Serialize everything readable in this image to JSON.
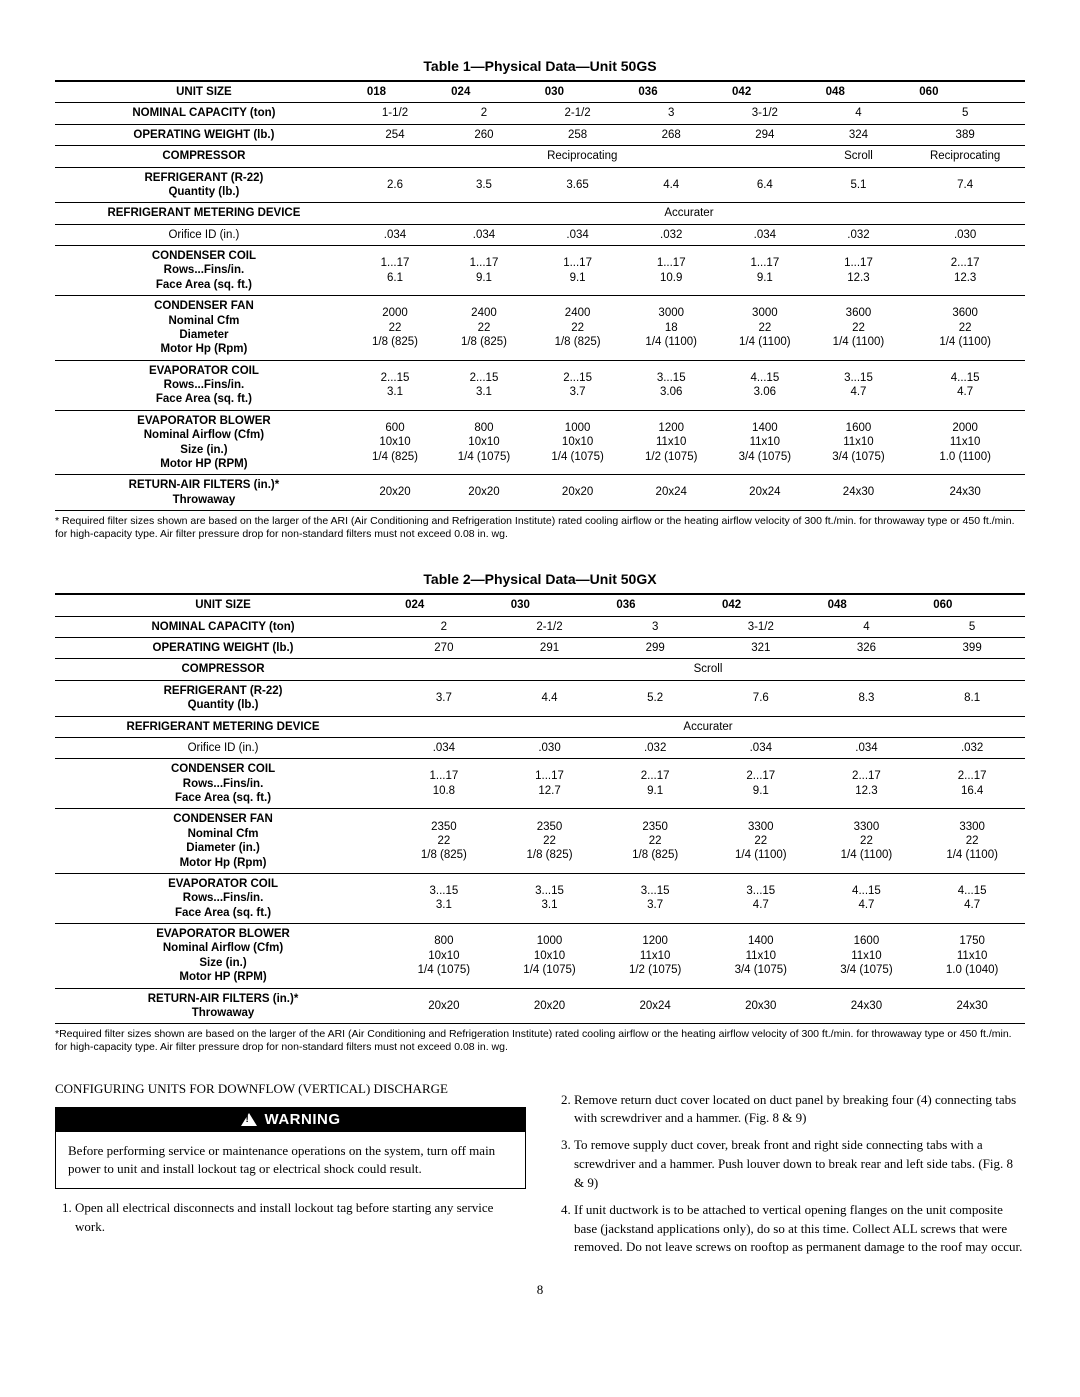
{
  "table1": {
    "title": "Table 1—Physical Data—Unit 50GS",
    "headers": [
      "UNIT SIZE",
      "018",
      "024",
      "030",
      "036",
      "042",
      "048",
      "060"
    ],
    "rows": [
      {
        "label": "NOMINAL CAPACITY (ton)",
        "vals": [
          "1-1/2",
          "2",
          "2-1/2",
          "3",
          "3-1/2",
          "4",
          "5"
        ]
      },
      {
        "label": "OPERATING WEIGHT (lb.)",
        "vals": [
          "254",
          "260",
          "258",
          "268",
          "294",
          "324",
          "389"
        ]
      },
      {
        "label": "COMPRESSOR",
        "spans": [
          {
            "text": "Reciprocating",
            "cols": 5
          },
          {
            "text": "Scroll",
            "cols": 1
          },
          {
            "text": "Reciprocating",
            "cols": 1
          }
        ]
      },
      {
        "label": "REFRIGERANT (R-22)\nQuantity (lb.)",
        "vals": [
          "2.6",
          "3.5",
          "3.65",
          "4.4",
          "6.4",
          "5.1",
          "7.4"
        ]
      },
      {
        "label": "REFRIGERANT METERING DEVICE",
        "spans": [
          {
            "text": "Accurater",
            "cols": 7
          }
        ]
      },
      {
        "label": "Orifice ID (in.)",
        "bold": false,
        "vals": [
          ".034",
          ".034",
          ".034",
          ".032",
          ".034",
          ".032",
          ".030"
        ]
      },
      {
        "label": "CONDENSER COIL\nRows...Fins/in.\nFace Area (sq. ft.)",
        "vals": [
          "1...17\n6.1",
          "1...17\n9.1",
          "1...17\n9.1",
          "1...17\n10.9",
          "1...17\n9.1",
          "1...17\n12.3",
          "2...17\n12.3"
        ]
      },
      {
        "label": "CONDENSER FAN\nNominal Cfm\nDiameter\nMotor Hp (Rpm)",
        "vals": [
          "2000\n22\n1/8 (825)",
          "2400\n22\n1/8 (825)",
          "2400\n22\n1/8 (825)",
          "3000\n18\n1/4 (1100)",
          "3000\n22\n1/4 (1100)",
          "3600\n22\n1/4 (1100)",
          "3600\n22\n1/4 (1100)"
        ]
      },
      {
        "label": "EVAPORATOR COIL\nRows...Fins/in.\nFace Area (sq. ft.)",
        "vals": [
          "2...15\n3.1",
          "2...15\n3.1",
          "2...15\n3.7",
          "3...15\n3.06",
          "4...15\n3.06",
          "3...15\n4.7",
          "4...15\n4.7"
        ]
      },
      {
        "label": "EVAPORATOR BLOWER\nNominal Airflow (Cfm)\nSize (in.)\nMotor HP (RPM)",
        "vals": [
          "600\n10x10\n1/4 (825)",
          "800\n10x10\n1/4 (1075)",
          "1000\n10x10\n1/4 (1075)",
          "1200\n11x10\n1/2 (1075)",
          "1400\n11x10\n3/4 (1075)",
          "1600\n11x10\n3/4 (1075)",
          "2000\n11x10\n1.0 (1100)"
        ]
      },
      {
        "label": "RETURN-AIR FILTERS (in.)*\nThrowaway",
        "vals": [
          "20x20",
          "20x20",
          "20x20",
          "20x24",
          "20x24",
          "24x30",
          "24x30"
        ]
      }
    ],
    "footnote": "* Required filter sizes shown are based on the larger of the ARI (Air Conditioning and Refrigeration Institute) rated cooling airflow or the heating airflow velocity of 300 ft./min. for throwaway type or 450 ft./min. for high-capacity type. Air filter pressure drop for non-standard filters must not exceed 0.08 in. wg."
  },
  "table2": {
    "title": "Table 2—Physical Data—Unit 50GX",
    "headers": [
      "UNIT SIZE",
      "024",
      "030",
      "036",
      "042",
      "048",
      "060"
    ],
    "rows": [
      {
        "label": "NOMINAL CAPACITY (ton)",
        "vals": [
          "2",
          "2-1/2",
          "3",
          "3-1/2",
          "4",
          "5"
        ]
      },
      {
        "label": "OPERATING WEIGHT (lb.)",
        "vals": [
          "270",
          "291",
          "299",
          "321",
          "326",
          "399"
        ]
      },
      {
        "label": "COMPRESSOR",
        "spans": [
          {
            "text": "Scroll",
            "cols": 6
          }
        ]
      },
      {
        "label": "REFRIGERANT (R-22)\nQuantity (lb.)",
        "vals": [
          "3.7",
          "4.4",
          "5.2",
          "7.6",
          "8.3",
          "8.1"
        ]
      },
      {
        "label": "REFRIGERANT METERING DEVICE",
        "spans": [
          {
            "text": "Accurater",
            "cols": 6
          }
        ]
      },
      {
        "label": "Orifice ID (in.)",
        "bold": false,
        "vals": [
          ".034",
          ".030",
          ".032",
          ".034",
          ".034",
          ".032"
        ]
      },
      {
        "label": "CONDENSER COIL\nRows...Fins/in.\nFace Area (sq. ft.)",
        "vals": [
          "1...17\n10.8",
          "1...17\n12.7",
          "2...17\n9.1",
          "2...17\n9.1",
          "2...17\n12.3",
          "2...17\n16.4"
        ]
      },
      {
        "label": "CONDENSER FAN\nNominal Cfm\nDiameter (in.)\nMotor Hp (Rpm)",
        "vals": [
          "2350\n22\n1/8 (825)",
          "2350\n22\n1/8 (825)",
          "2350\n22\n1/8 (825)",
          "3300\n22\n1/4 (1100)",
          "3300\n22\n1/4 (1100)",
          "3300\n22\n1/4 (1100)"
        ]
      },
      {
        "label": "EVAPORATOR COIL\nRows...Fins/in.\nFace Area (sq. ft.)",
        "vals": [
          "3...15\n3.1",
          "3...15\n3.1",
          "3...15\n3.7",
          "3...15\n4.7",
          "4...15\n4.7",
          "4...15\n4.7"
        ]
      },
      {
        "label": "EVAPORATOR BLOWER\nNominal Airflow (Cfm)\nSize (in.)\nMotor HP (RPM)",
        "vals": [
          "800\n10x10\n1/4 (1075)",
          "1000\n10x10\n1/4 (1075)",
          "1200\n11x10\n1/2 (1075)",
          "1400\n11x10\n3/4 (1075)",
          "1600\n11x10\n3/4 (1075)",
          "1750\n11x10\n1.0 (1040)"
        ]
      },
      {
        "label": "RETURN-AIR FILTERS (in.)*\nThrowaway",
        "vals": [
          "20x20",
          "20x20",
          "20x24",
          "20x30",
          "24x30",
          "24x30"
        ]
      }
    ],
    "footnote": "*Required filter sizes shown are based on the larger of the ARI (Air Conditioning and Refrigeration Institute) rated cooling airflow or the heating airflow velocity of 300 ft./min. for throwaway type or 450 ft./min. for high-capacity type. Air filter pressure drop for non-standard filters must not exceed 0.08 in. wg."
  },
  "text": {
    "section_head": "CONFIGURING UNITS FOR DOWNFLOW (VERTICAL) DISCHARGE",
    "warning_bar": "WARNING",
    "warning_body": "Before performing service or maintenance operations on the system, turn off main power to unit and install lockout tag or electrical shock could result.",
    "step1": "Open all electrical disconnects and install lockout tag before starting any service work.",
    "step2": "Remove return duct cover located on duct panel by breaking four (4) connecting tabs with screwdriver and a hammer. (Fig. 8 & 9)",
    "step3": "To remove supply duct cover, break front and right side connecting tabs with a screwdriver and a hammer. Push louver down to break rear and left side tabs. (Fig. 8 & 9)",
    "step4": "If unit ductwork is to be attached to vertical opening flanges on the unit composite base (jackstand applications only), do so at this time. Collect ALL screws that were removed. Do not leave screws on rooftop as permanent damage to the roof may occur.",
    "page_number": "8"
  }
}
